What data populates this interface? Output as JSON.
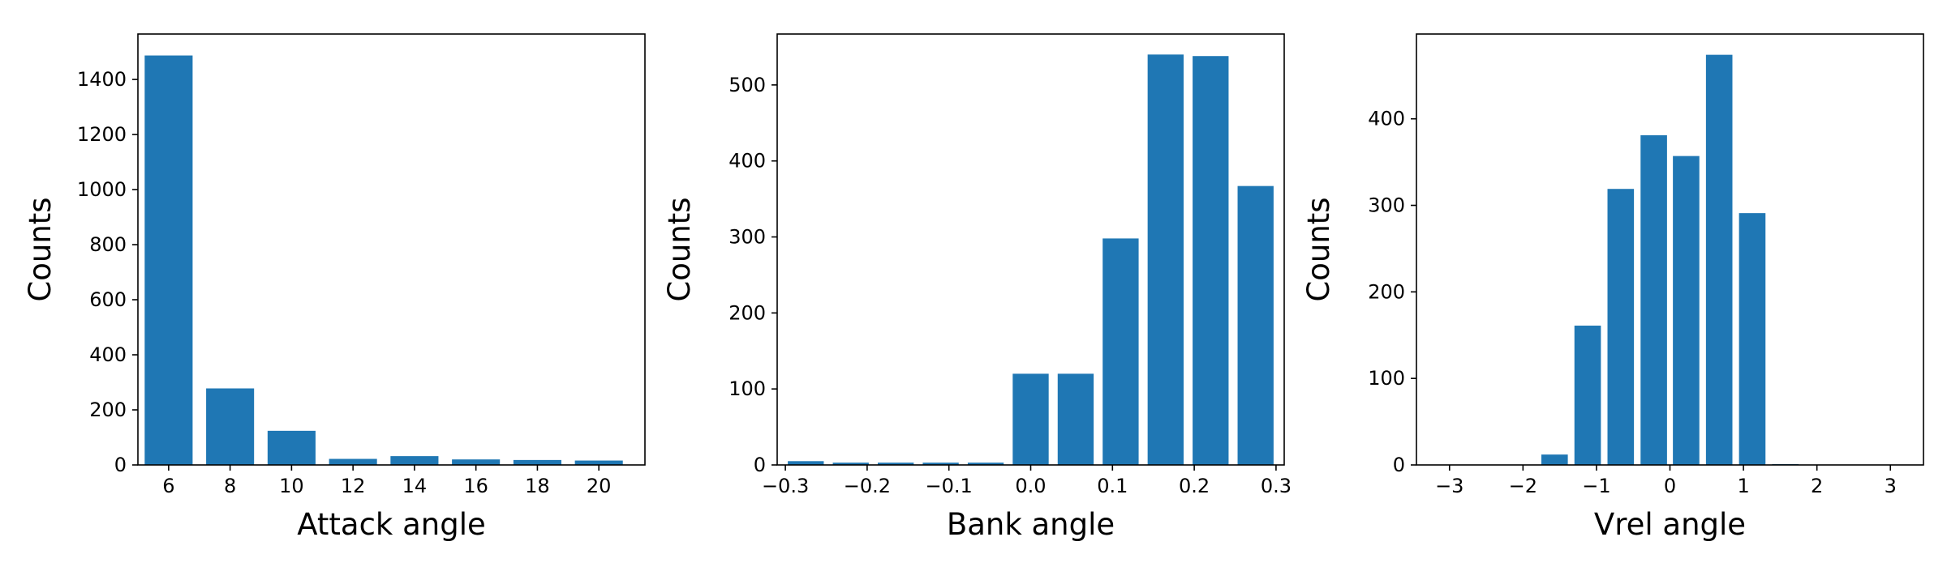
{
  "chart_data": [
    {
      "type": "bar",
      "xlabel": "Attack angle",
      "ylabel": "Counts",
      "x": [
        6,
        8,
        10,
        12,
        14,
        16,
        18,
        20
      ],
      "values": [
        1487,
        278,
        124,
        22,
        32,
        20,
        18,
        16
      ],
      "xlim": [
        5,
        21.5
      ],
      "ylim": [
        0,
        1565
      ],
      "xticks": [
        6,
        8,
        10,
        12,
        14,
        16,
        18,
        20
      ],
      "xtick_labels": [
        "6",
        "8",
        "10",
        "12",
        "14",
        "16",
        "18",
        "20"
      ],
      "yticks": [
        0,
        200,
        400,
        600,
        800,
        1000,
        1200,
        1400
      ],
      "ytick_labels": [
        "0",
        "200",
        "400",
        "600",
        "800",
        "1000",
        "1200",
        "1400"
      ],
      "grid": false,
      "color": "#1f77b4"
    },
    {
      "type": "bar",
      "xlabel": "Bank angle",
      "ylabel": "Counts",
      "x": [
        -0.275,
        -0.22,
        -0.165,
        -0.11,
        -0.055,
        0.0,
        0.055,
        0.11,
        0.165,
        0.22,
        0.275
      ],
      "values": [
        5,
        3,
        3,
        3,
        3,
        120,
        120,
        298,
        540,
        538,
        367
      ],
      "xlim": [
        -0.31,
        0.31
      ],
      "ylim": [
        0,
        567
      ],
      "xticks": [
        -0.3,
        -0.2,
        -0.1,
        0.0,
        0.1,
        0.2,
        0.3
      ],
      "xtick_labels": [
        "−0.3",
        "−0.2",
        "−0.1",
        "0.0",
        "0.1",
        "0.2",
        "0.3"
      ],
      "yticks": [
        0,
        100,
        200,
        300,
        400,
        500
      ],
      "ytick_labels": [
        "0",
        "100",
        "200",
        "300",
        "400",
        "500"
      ],
      "grid": false,
      "color": "#1f77b4"
    },
    {
      "type": "bar",
      "xlabel": "Vrel angle",
      "ylabel": "Counts",
      "x": [
        -1.57,
        -1.12,
        -0.67,
        -0.22,
        0.22,
        0.67,
        1.12,
        1.57
      ],
      "values": [
        12,
        161,
        319,
        381,
        357,
        474,
        291,
        1
      ],
      "xlim": [
        -3.45,
        3.45
      ],
      "ylim": [
        0,
        498
      ],
      "xticks": [
        -3,
        -2,
        -1,
        0,
        1,
        2,
        3
      ],
      "xtick_labels": [
        "−3",
        "−2",
        "−1",
        "0",
        "1",
        "2",
        "3"
      ],
      "yticks": [
        0,
        100,
        200,
        300,
        400
      ],
      "ytick_labels": [
        "0",
        "100",
        "200",
        "300",
        "400"
      ],
      "grid": false,
      "color": "#1f77b4"
    }
  ]
}
